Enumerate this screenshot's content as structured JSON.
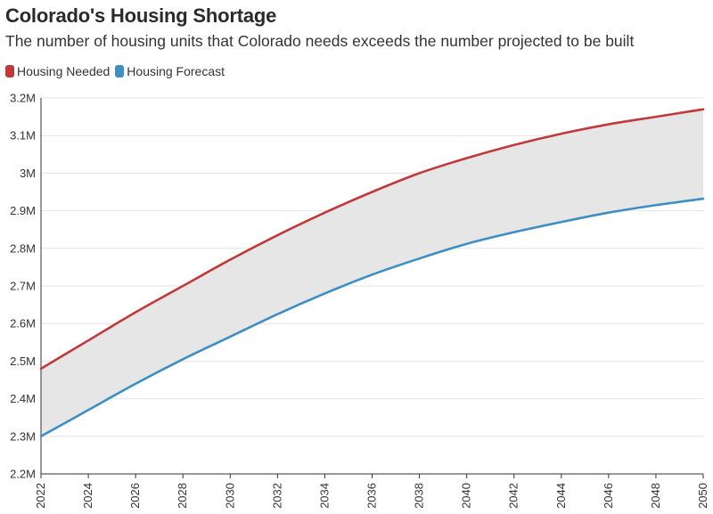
{
  "chart_data": {
    "type": "line",
    "title": "Colorado's Housing Shortage",
    "subtitle": "The number of housing units that Colorado needs exceeds the number projected to be built",
    "xlabel": "",
    "ylabel": "",
    "ylim": [
      2200000,
      3200000
    ],
    "xlim": [
      2022,
      2050
    ],
    "y_ticks": [
      "2.2M",
      "2.3M",
      "2.4M",
      "2.5M",
      "2.6M",
      "2.7M",
      "2.8M",
      "2.9M",
      "3M",
      "3.1M",
      "3.2M"
    ],
    "x_ticks": [
      "2022",
      "2024",
      "2026",
      "2028",
      "2030",
      "2032",
      "2034",
      "2036",
      "2038",
      "2040",
      "2042",
      "2044",
      "2046",
      "2048",
      "2050"
    ],
    "grid": true,
    "legend_position": "top-left",
    "fill_between_series": true,
    "x": [
      2022,
      2024,
      2026,
      2028,
      2030,
      2032,
      2034,
      2036,
      2038,
      2040,
      2042,
      2044,
      2046,
      2048,
      2050
    ],
    "series": [
      {
        "name": "Housing Needed",
        "color": "#c0393b",
        "values": [
          2480000,
          2555000,
          2630000,
          2700000,
          2770000,
          2835000,
          2895000,
          2950000,
          3000000,
          3040000,
          3075000,
          3105000,
          3130000,
          3150000,
          3170000
        ]
      },
      {
        "name": "Housing Forecast",
        "color": "#3d8fc3",
        "values": [
          2300000,
          2370000,
          2440000,
          2505000,
          2565000,
          2625000,
          2680000,
          2730000,
          2773000,
          2812000,
          2843000,
          2870000,
          2895000,
          2915000,
          2932000
        ]
      }
    ],
    "band_color": "#e6e6e6"
  }
}
